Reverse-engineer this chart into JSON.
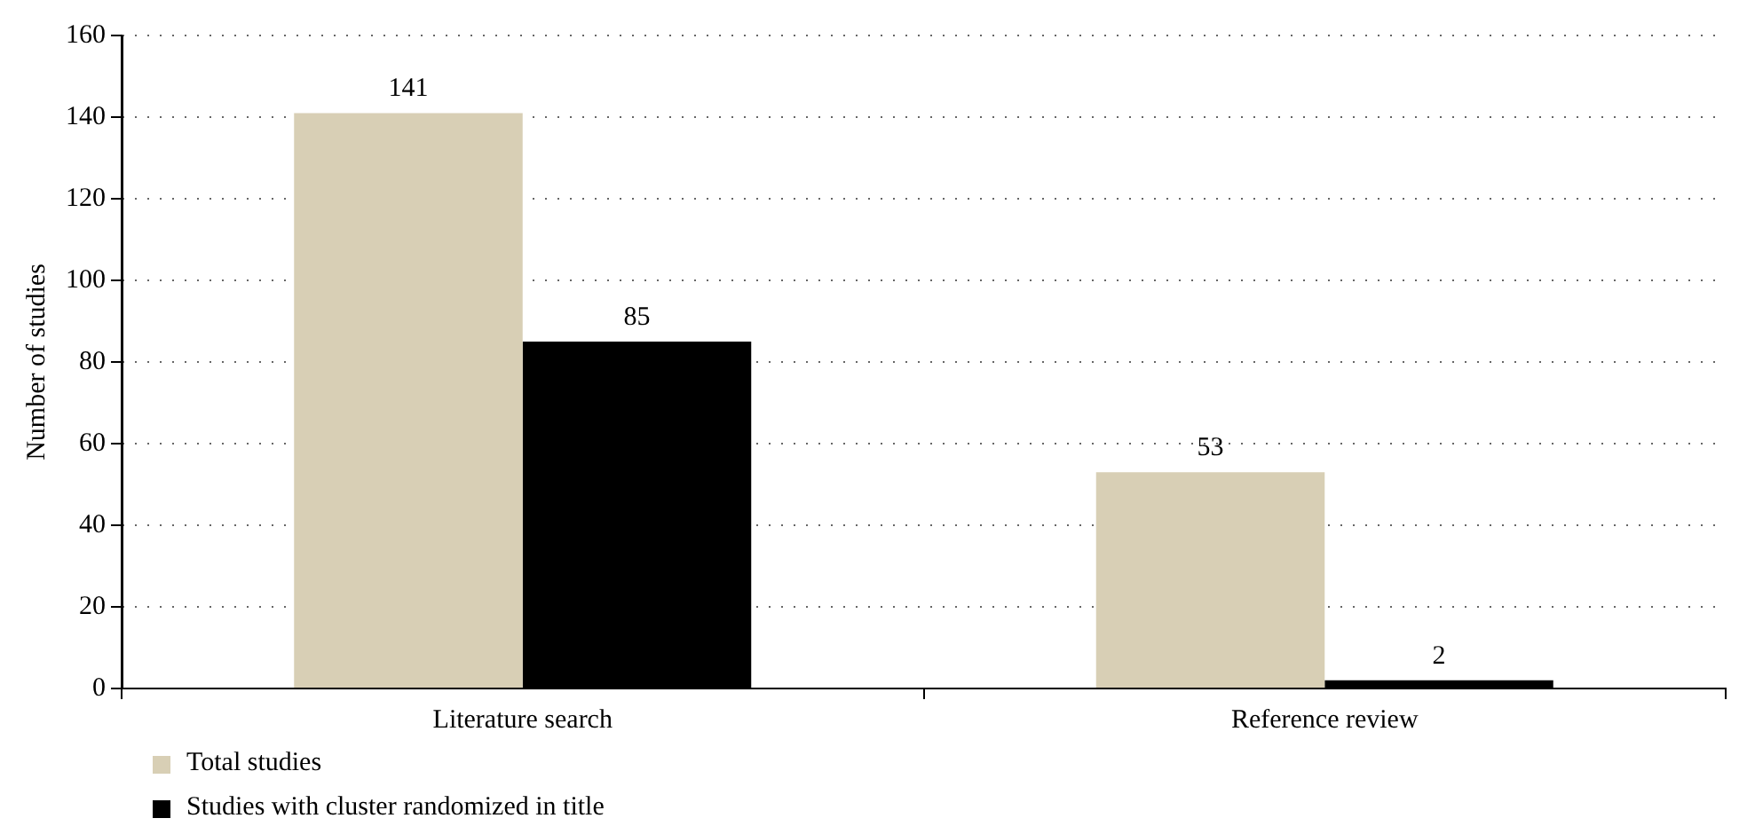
{
  "chart_data": {
    "type": "bar",
    "ylabel": "Number of studies",
    "categories": [
      "Literature search",
      "Reference review"
    ],
    "series": [
      {
        "name": "Total studies",
        "color": "#d8cfb5",
        "values": [
          141,
          53
        ]
      },
      {
        "name": "Studies with cluster randomized in title",
        "color": "#000000",
        "values": [
          85,
          2
        ]
      }
    ],
    "ylim": [
      0,
      160
    ],
    "yticks": [
      0,
      20,
      40,
      60,
      80,
      100,
      120,
      140,
      160
    ],
    "grid": "y",
    "legend": "bottom left",
    "data_labels": true
  }
}
